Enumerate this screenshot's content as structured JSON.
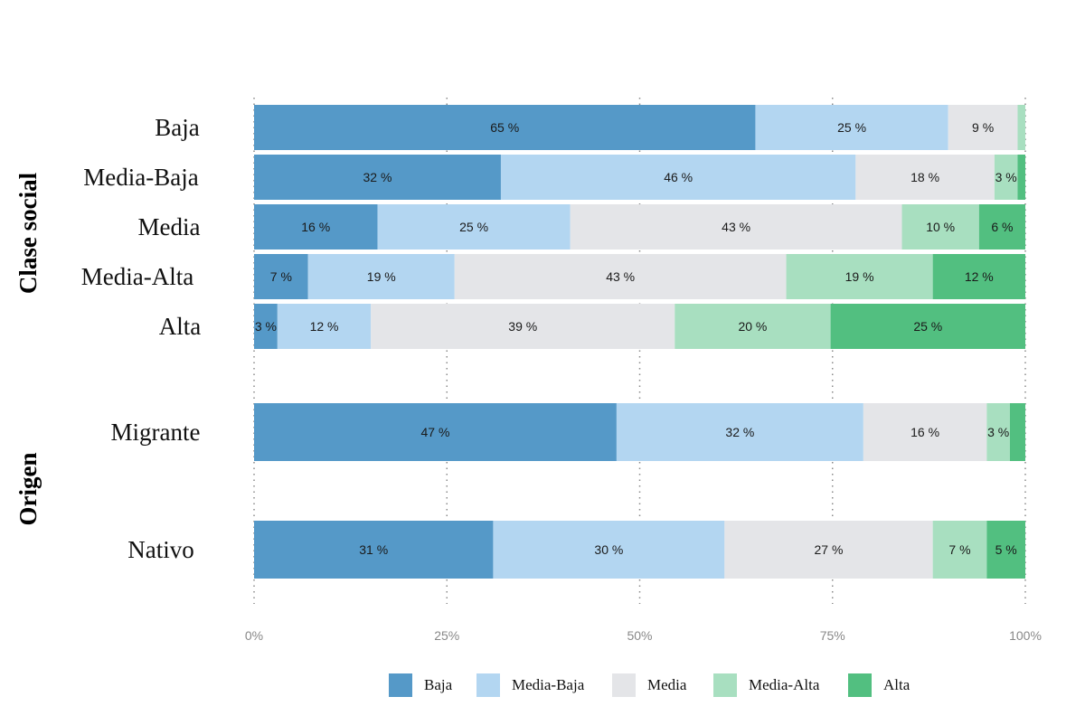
{
  "chart_data": {
    "type": "bar",
    "orientation": "horizontal",
    "stacked": true,
    "percent": true,
    "categories": [
      "Baja",
      "Media-Baja",
      "Media",
      "Media-Alta",
      "Alta",
      "Migrante",
      "Nativo"
    ],
    "groups": [
      {
        "name": "Clase social",
        "categories": [
          "Baja",
          "Media-Baja",
          "Media",
          "Media-Alta",
          "Alta"
        ]
      },
      {
        "name": "Origen",
        "categories": [
          "Migrante",
          "Nativo"
        ]
      }
    ],
    "series": [
      {
        "name": "Baja",
        "color": "#5599c8",
        "values": [
          65,
          32,
          16,
          7,
          3,
          47,
          31
        ],
        "labels": [
          "65 %",
          "32 %",
          "16 %",
          "7 %",
          "3 %",
          "47 %",
          "31 %"
        ]
      },
      {
        "name": "Media-Baja",
        "color": "#b3d6f1",
        "values": [
          25,
          46,
          25,
          19,
          12,
          32,
          30
        ],
        "labels": [
          "25 %",
          "46 %",
          "25 %",
          "19 %",
          "12 %",
          "32 %",
          "30 %"
        ]
      },
      {
        "name": "Media",
        "color": "#e4e5e8",
        "values": [
          9,
          18,
          43,
          43,
          39,
          16,
          27
        ],
        "labels": [
          "9 %",
          "18 %",
          "43 %",
          "43 %",
          "39 %",
          "16 %",
          "27 %"
        ]
      },
      {
        "name": "Media-Alta",
        "color": "#a8dfc0",
        "values": [
          1,
          3,
          10,
          19,
          20,
          3,
          7
        ],
        "labels": [
          "",
          "3 %",
          "10 %",
          "19 %",
          "20 %",
          "3 %",
          "7 %"
        ]
      },
      {
        "name": "Alta",
        "color": "#52bf80",
        "values": [
          0,
          1,
          6,
          12,
          25,
          2,
          5
        ],
        "labels": [
          "",
          "",
          "6 %",
          "12 %",
          "25 %",
          "",
          "5 %"
        ]
      }
    ],
    "xlim": [
      0,
      100
    ],
    "xticks": [
      0,
      25,
      50,
      75,
      100
    ],
    "xtick_labels": [
      "0%",
      "25%",
      "50%",
      "75%",
      "100%"
    ],
    "grid": "vertical dotted",
    "legend_position": "bottom"
  }
}
